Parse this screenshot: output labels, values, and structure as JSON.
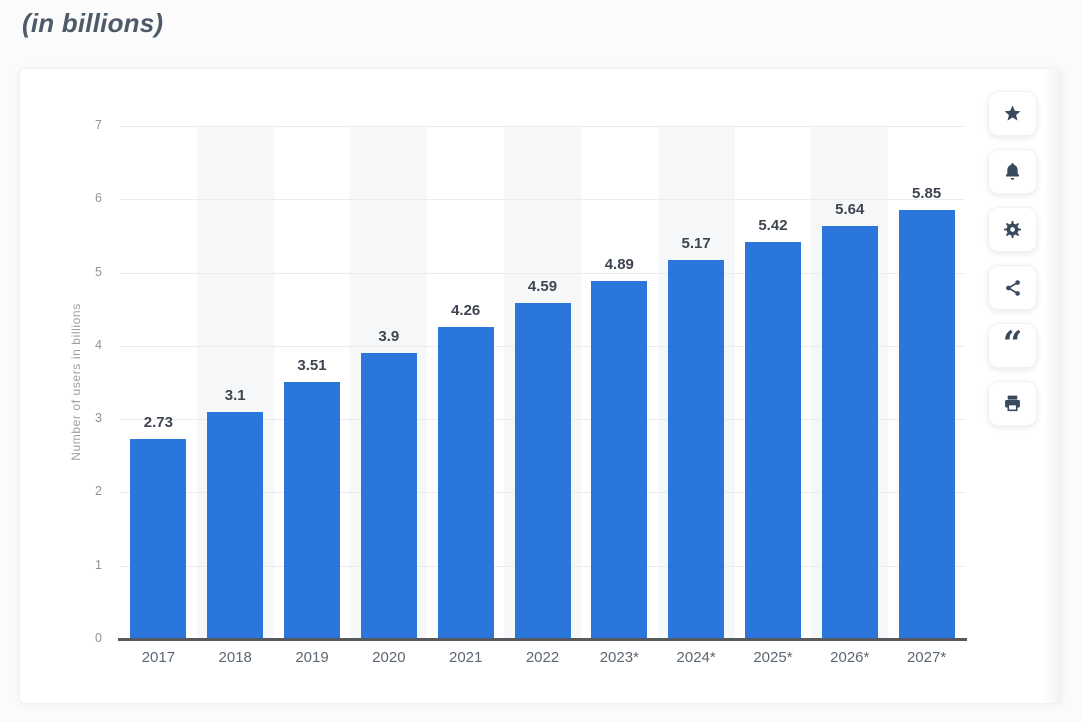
{
  "page": {
    "title": "(in billions)"
  },
  "colors": {
    "bar": "#2b76da",
    "bar_label": "#3f4550",
    "axis_line": "#56595e",
    "gridline": "#ececee",
    "band": "#f6f7f8",
    "y_tick_label": "#8e939b",
    "y_axis_title": "#9aa0a8",
    "x_tick_label": "#5d6772",
    "icon": "#3a4a5e",
    "title": "#4e5a69"
  },
  "chart_data": {
    "type": "bar",
    "title": "(in billions)",
    "categories": [
      "2017",
      "2018",
      "2019",
      "2020",
      "2021",
      "2022",
      "2023*",
      "2024*",
      "2025*",
      "2026*",
      "2027*"
    ],
    "values": [
      2.73,
      3.1,
      3.51,
      3.9,
      4.26,
      4.59,
      4.89,
      5.17,
      5.42,
      5.64,
      5.85
    ],
    "value_labels": [
      "2.73",
      "3.1",
      "3.51",
      "3.9",
      "4.26",
      "4.59",
      "4.89",
      "5.17",
      "5.42",
      "5.64",
      "5.85"
    ],
    "xlabel": "",
    "ylabel": "Number of users in billions",
    "ylim": [
      0,
      7
    ],
    "yticks": [
      0,
      1,
      2,
      3,
      4,
      5,
      6,
      7
    ],
    "grid": true,
    "alternating_bands": true,
    "legend": false
  },
  "toolbar": {
    "buttons": [
      {
        "name": "favorite-button",
        "icon": "star-icon"
      },
      {
        "name": "alerts-button",
        "icon": "bell-icon"
      },
      {
        "name": "settings-button",
        "icon": "gear-icon"
      },
      {
        "name": "share-button",
        "icon": "share-icon"
      },
      {
        "name": "citation-button",
        "icon": "quote-icon"
      },
      {
        "name": "print-button",
        "icon": "printer-icon"
      }
    ]
  }
}
